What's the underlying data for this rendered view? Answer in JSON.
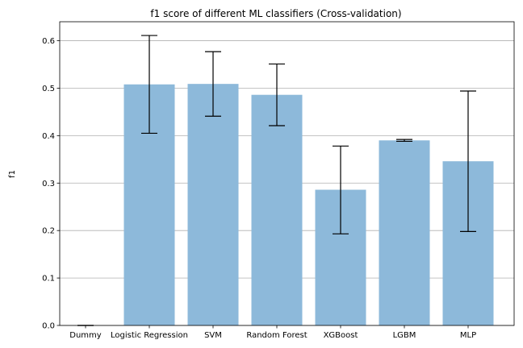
{
  "chart_data": {
    "type": "bar",
    "title": "f1 score of different ML classifiers (Cross-validation)",
    "xlabel": "",
    "ylabel": "f1",
    "ylim": [
      0,
      0.64
    ],
    "yticks": [
      "0.0",
      "0.1",
      "0.2",
      "0.3",
      "0.4",
      "0.5",
      "0.6"
    ],
    "grid": "horizontal",
    "categories": [
      "Dummy",
      "Logistic Regression",
      "SVM",
      "Random Forest",
      "XGBoost",
      "LGBM",
      "MLP"
    ],
    "values": [
      0.0,
      0.508,
      0.509,
      0.486,
      0.286,
      0.39,
      0.346
    ],
    "error_low": [
      0.0,
      0.405,
      0.441,
      0.421,
      0.193,
      0.388,
      0.198
    ],
    "error_high": [
      0.0,
      0.611,
      0.577,
      0.551,
      0.378,
      0.392,
      0.494
    ],
    "bar_color": "#8db9da",
    "error_color": "#000000",
    "grid_color": "#b0b0b0"
  }
}
